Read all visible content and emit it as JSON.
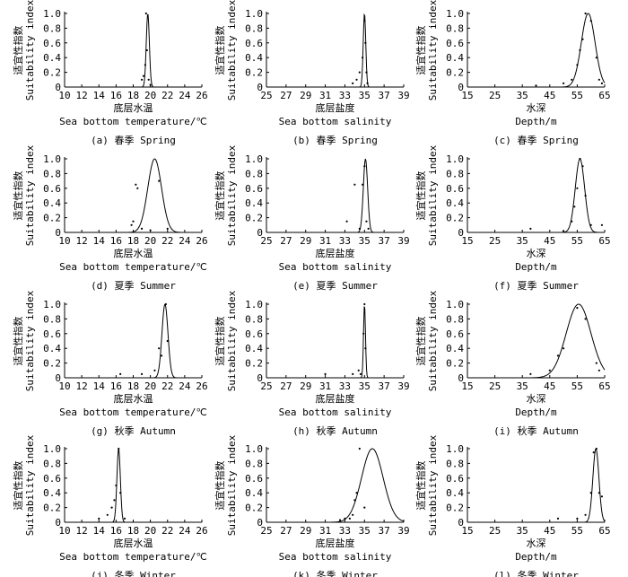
{
  "chart_data": [
    {
      "type": "scatter",
      "ylabel_cn": "适宜性指数",
      "ylabel_en": "Suitability index",
      "xlabel_cn": "底层水温",
      "xlabel_en": "Sea bottom temperature/℃",
      "caption": "(a) 春季 Spring",
      "xlim": [
        10,
        26
      ],
      "xticks": [
        "10",
        "12",
        "14",
        "16",
        "18",
        "20",
        "22",
        "24",
        "26"
      ],
      "ylim": [
        0,
        1.0
      ],
      "yticks": [
        "0",
        "0.2",
        "0.4",
        "0.6",
        "0.8",
        "1.0"
      ],
      "points": [
        [
          19.0,
          0.1
        ],
        [
          19.2,
          0.15
        ],
        [
          19.4,
          0.3
        ],
        [
          19.5,
          1.0
        ],
        [
          19.6,
          0.5
        ],
        [
          19.8,
          0.1
        ],
        [
          20.0,
          0.03
        ]
      ],
      "curve": {
        "type": "gaussian",
        "mu": 19.7,
        "sigma": 0.18
      }
    },
    {
      "type": "scatter",
      "ylabel_cn": "适宜性指数",
      "ylabel_en": "Suitability index",
      "xlabel_cn": "底层盐度",
      "xlabel_en": "Sea bottom salinity",
      "caption": "(b) 春季 Spring",
      "xlim": [
        25,
        39
      ],
      "xticks": [
        "25",
        "27",
        "29",
        "31",
        "33",
        "35",
        "37",
        "39"
      ],
      "ylim": [
        0,
        1.0
      ],
      "yticks": [
        "0",
        "0.2",
        "0.4",
        "0.6",
        "0.8",
        "1.0"
      ],
      "points": [
        [
          33.8,
          0.05
        ],
        [
          34.2,
          0.1
        ],
        [
          34.5,
          0.2
        ],
        [
          34.8,
          0.4
        ],
        [
          35.0,
          0.9
        ],
        [
          35.1,
          0.6
        ],
        [
          35.2,
          0.2
        ],
        [
          35.3,
          0.05
        ]
      ],
      "curve": {
        "type": "gaussian",
        "mu": 35.0,
        "sigma": 0.13
      }
    },
    {
      "type": "scatter",
      "ylabel_cn": "适宜性指数",
      "ylabel_en": "Suitability index",
      "xlabel_cn": "水深",
      "xlabel_en": "Depth/m",
      "caption": "(c) 春季 Spring",
      "xlim": [
        15,
        65
      ],
      "xticks": [
        "15",
        "25",
        "35",
        "45",
        "55",
        "65"
      ],
      "ylim": [
        0,
        1.0
      ],
      "yticks": [
        "0",
        "0.2",
        "0.4",
        "0.6",
        "0.8",
        "1.0"
      ],
      "points": [
        [
          40,
          0.02
        ],
        [
          50,
          0.05
        ],
        [
          53,
          0.1
        ],
        [
          55,
          0.3
        ],
        [
          56,
          0.5
        ],
        [
          57,
          0.65
        ],
        [
          58,
          1.0
        ],
        [
          60,
          0.9
        ],
        [
          62,
          0.4
        ],
        [
          63,
          0.1
        ],
        [
          64,
          0.05
        ]
      ],
      "curve": {
        "type": "gaussian",
        "mu": 59,
        "sigma": 2.5
      }
    },
    {
      "type": "scatter",
      "ylabel_cn": "适宜性指数",
      "ylabel_en": "Suitability index",
      "xlabel_cn": "底层水温",
      "xlabel_en": "Sea bottom temperature/℃",
      "caption": "(d) 夏季 Summer",
      "xlim": [
        10,
        26
      ],
      "xticks": [
        "10",
        "12",
        "14",
        "16",
        "18",
        "20",
        "22",
        "24",
        "26"
      ],
      "ylim": [
        0,
        1.0
      ],
      "yticks": [
        "0",
        "0.2",
        "0.4",
        "0.6",
        "0.8",
        "1.0"
      ],
      "points": [
        [
          17.8,
          0.1
        ],
        [
          18.0,
          0.15
        ],
        [
          18.3,
          0.65
        ],
        [
          18.5,
          0.6
        ],
        [
          19.0,
          0.05
        ],
        [
          20.0,
          0.03
        ],
        [
          21.0,
          0.7
        ],
        [
          22.0,
          0.05
        ]
      ],
      "curve": {
        "type": "gaussian",
        "mu": 20.5,
        "sigma": 0.8
      }
    },
    {
      "type": "scatter",
      "ylabel_cn": "适宜性指数",
      "ylabel_en": "Suitability index",
      "xlabel_cn": "底层盐度",
      "xlabel_en": "Sea bottom salinity",
      "caption": "(e) 夏季 Summer",
      "xlim": [
        25,
        39
      ],
      "xticks": [
        "25",
        "27",
        "29",
        "31",
        "33",
        "35",
        "37",
        "39"
      ],
      "ylim": [
        0,
        1.0
      ],
      "yticks": [
        "0",
        "0.2",
        "0.4",
        "0.6",
        "0.8",
        "1.0"
      ],
      "points": [
        [
          33.2,
          0.15
        ],
        [
          34.0,
          0.65
        ],
        [
          34.5,
          0.05
        ],
        [
          34.8,
          0.65
        ],
        [
          35.0,
          0.9
        ],
        [
          35.2,
          0.15
        ],
        [
          35.4,
          0.05
        ]
      ],
      "curve": {
        "type": "gaussian",
        "mu": 35.1,
        "sigma": 0.22
      }
    },
    {
      "type": "scatter",
      "ylabel_cn": "适宜性指数",
      "ylabel_en": "Suitability index",
      "xlabel_cn": "水深",
      "xlabel_en": "Depth/m",
      "caption": "(f) 夏季 Summer",
      "xlim": [
        15,
        65
      ],
      "xticks": [
        "15",
        "25",
        "35",
        "45",
        "55",
        "65"
      ],
      "ylim": [
        0,
        1.0
      ],
      "yticks": [
        "0",
        "0.2",
        "0.4",
        "0.6",
        "0.8",
        "1.0"
      ],
      "points": [
        [
          38,
          0.05
        ],
        [
          50,
          0.02
        ],
        [
          53,
          0.15
        ],
        [
          54,
          0.35
        ],
        [
          55,
          0.6
        ],
        [
          56,
          1.0
        ],
        [
          57,
          0.9
        ],
        [
          58,
          0.5
        ],
        [
          60,
          0.1
        ],
        [
          64,
          0.1
        ]
      ],
      "curve": {
        "type": "gaussian",
        "mu": 56,
        "sigma": 1.7
      }
    },
    {
      "type": "scatter",
      "ylabel_cn": "适宜性指数",
      "ylabel_en": "Suitability index",
      "xlabel_cn": "底层水温",
      "xlabel_en": "Sea bottom temperature/℃",
      "caption": "(g) 秋季 Autumn",
      "xlim": [
        10,
        26
      ],
      "xticks": [
        "10",
        "12",
        "14",
        "16",
        "18",
        "20",
        "22",
        "24",
        "26"
      ],
      "ylim": [
        0,
        1.0
      ],
      "yticks": [
        "0",
        "0.2",
        "0.4",
        "0.6",
        "0.8",
        "1.0"
      ],
      "points": [
        [
          16.5,
          0.05
        ],
        [
          19.0,
          0.05
        ],
        [
          20.5,
          0.1
        ],
        [
          21.0,
          0.4
        ],
        [
          21.3,
          0.3
        ],
        [
          21.8,
          1.0
        ],
        [
          22.0,
          0.5
        ]
      ],
      "curve": {
        "type": "gaussian",
        "mu": 21.7,
        "sigma": 0.35
      }
    },
    {
      "type": "scatter",
      "ylabel_cn": "适宜性指数",
      "ylabel_en": "Suitability index",
      "xlabel_cn": "底层盐度",
      "xlabel_en": "Sea bottom salinity",
      "caption": "(h) 秋季 Autumn",
      "xlim": [
        25,
        39
      ],
      "xticks": [
        "25",
        "27",
        "29",
        "31",
        "33",
        "35",
        "37",
        "39"
      ],
      "ylim": [
        0,
        1.0
      ],
      "yticks": [
        "0",
        "0.2",
        "0.4",
        "0.6",
        "0.8",
        "1.0"
      ],
      "points": [
        [
          31.0,
          0.05
        ],
        [
          33.8,
          0.05
        ],
        [
          34.4,
          0.1
        ],
        [
          34.6,
          0.05
        ],
        [
          34.9,
          0.6
        ],
        [
          35.0,
          1.0
        ],
        [
          35.1,
          0.4
        ]
      ],
      "curve": {
        "type": "gaussian",
        "mu": 35.0,
        "sigma": 0.1
      }
    },
    {
      "type": "scatter",
      "ylabel_cn": "适宜性指数",
      "ylabel_en": "Suitability index",
      "xlabel_cn": "水深",
      "xlabel_en": "Depth/m",
      "caption": "(i) 秋季 Autumn",
      "xlim": [
        15,
        65
      ],
      "xticks": [
        "15",
        "25",
        "35",
        "45",
        "55",
        "65"
      ],
      "ylim": [
        0,
        1.0
      ],
      "yticks": [
        "0",
        "0.2",
        "0.4",
        "0.6",
        "0.8",
        "1.0"
      ],
      "points": [
        [
          38,
          0.05
        ],
        [
          45,
          0.1
        ],
        [
          48,
          0.3
        ],
        [
          50,
          0.4
        ],
        [
          55,
          0.95
        ],
        [
          58,
          0.8
        ],
        [
          62,
          0.2
        ],
        [
          63,
          0.1
        ]
      ],
      "curve": {
        "type": "gaussian",
        "mu": 55.5,
        "sigma": 4.5
      }
    },
    {
      "type": "scatter",
      "ylabel_cn": "适宜性指数",
      "ylabel_en": "Suitability index",
      "xlabel_cn": "底层水温",
      "xlabel_en": "Sea bottom temperature/℃",
      "caption": "(j) 冬季 Winter",
      "xlim": [
        10,
        26
      ],
      "xticks": [
        "10",
        "12",
        "14",
        "16",
        "18",
        "20",
        "22",
        "24",
        "26"
      ],
      "ylim": [
        0,
        1.0
      ],
      "yticks": [
        "0",
        "0.2",
        "0.4",
        "0.6",
        "0.8",
        "1.0"
      ],
      "points": [
        [
          14.0,
          0.05
        ],
        [
          15.0,
          0.1
        ],
        [
          15.5,
          0.2
        ],
        [
          15.8,
          0.3
        ],
        [
          16.0,
          0.5
        ],
        [
          16.3,
          1.0
        ],
        [
          16.5,
          0.4
        ],
        [
          17.0,
          0.05
        ]
      ],
      "curve": {
        "type": "gaussian",
        "mu": 16.3,
        "sigma": 0.2
      }
    },
    {
      "type": "scatter",
      "ylabel_cn": "适宜性指数",
      "ylabel_en": "Suitability index",
      "xlabel_cn": "底层盐度",
      "xlabel_en": "Sea bottom salinity",
      "caption": "(k) 冬季 Winter",
      "xlim": [
        25,
        39
      ],
      "xticks": [
        "25",
        "27",
        "29",
        "31",
        "33",
        "35",
        "37",
        "39"
      ],
      "ylim": [
        0,
        1.0
      ],
      "yticks": [
        "0",
        "0.2",
        "0.4",
        "0.6",
        "0.8",
        "1.0"
      ],
      "points": [
        [
          32.5,
          0.03
        ],
        [
          33.0,
          0.05
        ],
        [
          33.5,
          0.05
        ],
        [
          33.8,
          0.1
        ],
        [
          34.0,
          0.3
        ],
        [
          34.2,
          0.4
        ],
        [
          34.5,
          1.0
        ],
        [
          35.0,
          0.2
        ]
      ],
      "curve": {
        "type": "gaussian",
        "mu": 35.8,
        "sigma": 1.1
      }
    },
    {
      "type": "scatter",
      "ylabel_cn": "适宜性指数",
      "ylabel_en": "Suitability index",
      "xlabel_cn": "水深",
      "xlabel_en": "Depth/m",
      "caption": "(l) 冬季 Winter",
      "xlim": [
        15,
        65
      ],
      "xticks": [
        "15",
        "25",
        "35",
        "45",
        "55",
        "65"
      ],
      "ylim": [
        0,
        1.0
      ],
      "yticks": [
        "0",
        "0.2",
        "0.4",
        "0.6",
        "0.8",
        "1.0"
      ],
      "points": [
        [
          48,
          0.05
        ],
        [
          55,
          0.05
        ],
        [
          58,
          0.1
        ],
        [
          60,
          0.4
        ],
        [
          61,
          0.95
        ],
        [
          62,
          1.0
        ],
        [
          63,
          0.4
        ],
        [
          64,
          0.35
        ]
      ],
      "curve": {
        "type": "gaussian",
        "mu": 61.8,
        "sigma": 1.1
      }
    }
  ]
}
